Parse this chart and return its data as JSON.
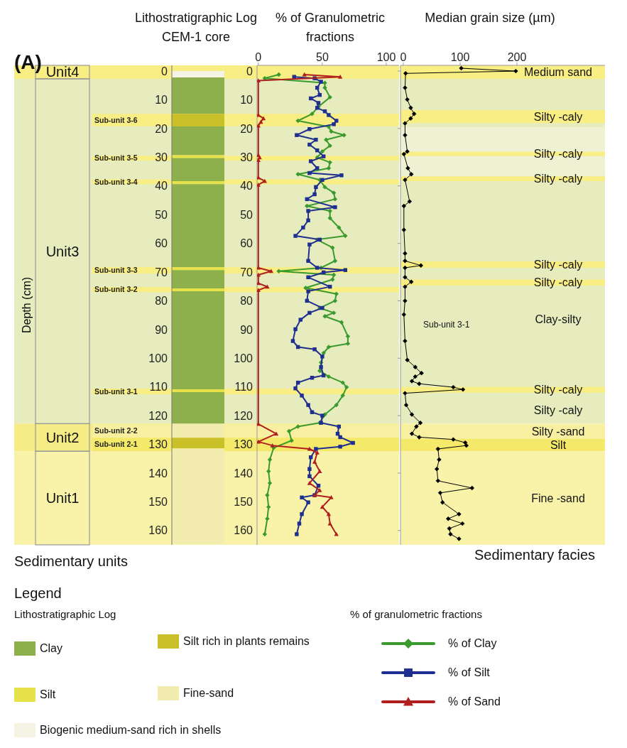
{
  "chart_data": [
    {
      "type": "bar",
      "stacked": true,
      "title": "Lithostratigraphic Log CEM-1 core",
      "ylabel": "Depth (cm)",
      "categories": [
        null
      ],
      "ylim": [
        165,
        -2
      ],
      "yticks": [
        0,
        10,
        20,
        30,
        40,
        50,
        60,
        70,
        80,
        90,
        100,
        110,
        120,
        130,
        140,
        150,
        160
      ],
      "legend": "bottom",
      "legend_title": "Lithostratigraphic Log",
      "annotations": [
        "(A)",
        "Sedimentary units",
        "Legend"
      ],
      "series": [
        {
          "name": "Biogenic medium-sand rich in shells",
          "color": "#f4f3e4",
          "values": [
            2.2
          ]
        },
        {
          "name": "Clay",
          "color": "#8db04c",
          "values": [
            12.7
          ]
        },
        {
          "name": "Silt rich in plants remains",
          "color": "#c9c02a",
          "values": [
            4.4
          ]
        },
        {
          "color": "#8db04c",
          "values": [
            10
          ]
        },
        {
          "name": "Silt",
          "color": "#e8e24a",
          "values": [
            1
          ]
        },
        {
          "color": "#8db04c",
          "values": [
            8.1
          ]
        },
        {
          "color": "#e8e24a",
          "values": [
            1
          ]
        },
        {
          "color": "#8db04c",
          "values": [
            28.9
          ]
        },
        {
          "color": "#e8e24a",
          "values": [
            1
          ]
        },
        {
          "color": "#8db04c",
          "values": [
            6.4
          ]
        },
        {
          "color": "#e8e24a",
          "values": [
            1
          ]
        },
        {
          "color": "#8db04c",
          "values": [
            34.1
          ]
        },
        {
          "color": "#e8e24a",
          "values": [
            1
          ]
        },
        {
          "color": "#8db04c",
          "values": [
            11
          ]
        },
        {
          "name": "Fine-sand",
          "color": "#f2edae",
          "values": [
            4.9
          ]
        },
        {
          "color": "#c9c02a",
          "values": [
            3.7
          ]
        },
        {
          "color": "#f2edae",
          "values": [
            33.2
          ]
        }
      ]
    },
    {
      "type": "line",
      "title": "% of Granulometric fractions",
      "orientation": "horizontal",
      "xlim": [
        -1,
        110
      ],
      "xticks": [
        0,
        50,
        100
      ],
      "ylim": [
        165,
        -2
      ],
      "yticks": [
        0,
        10,
        20,
        30,
        40,
        50,
        60,
        70,
        80,
        90,
        100,
        110,
        120,
        130,
        140,
        150,
        160
      ],
      "legend": "bottom",
      "legend_title": "% of granulometric fractions",
      "bands": [
        {
          "axis": "y",
          "from": -2,
          "to": 2.7,
          "label": "Unit4",
          "color": "#f8ee84"
        },
        {
          "axis": "y",
          "from": 2.7,
          "to": 122.8,
          "label": "Unit3",
          "color": "#e6ecbd"
        },
        {
          "axis": "y",
          "from": 122.8,
          "to": 132.4,
          "label": "Unit2",
          "color": "#f6ec86"
        },
        {
          "axis": "y",
          "from": 132.4,
          "to": 165,
          "label": "Unit1",
          "color": "#f8f3a8"
        },
        {
          "axis": "y",
          "from": 14.9,
          "to": 19.2,
          "label": "Sub-unit 3-6",
          "color": "#f8ee84"
        },
        {
          "axis": "y",
          "from": 29.5,
          "to": 31.2,
          "label": "Sub-unit 3-5",
          "color": "#f8ee84"
        },
        {
          "axis": "y",
          "from": 37.7,
          "to": 39.4,
          "label": "Sub-unit 3-4",
          "color": "#f8ee84"
        },
        {
          "axis": "y",
          "from": 68.3,
          "to": 70.5,
          "label": "Sub-unit 3-3",
          "color": "#f8ee84"
        },
        {
          "axis": "y",
          "from": 75.2,
          "to": 77,
          "label": "Sub-unit 3-2",
          "color": "#f8ee84"
        },
        {
          "axis": "y",
          "from": 110.6,
          "to": 112.6,
          "label": "Sub-unit 3-1",
          "color": "#f8ee84"
        },
        {
          "axis": "y",
          "from": 122.8,
          "to": 127.7,
          "label": "Sub-unit 2-2",
          "color": "#f8f0a0"
        },
        {
          "axis": "y",
          "from": 127.7,
          "to": 132.4,
          "label": "Sub-unit 2-1",
          "color": "#f5e96a"
        }
      ],
      "series": [
        {
          "name": "% of Clay",
          "color": "#3a9a2e",
          "marker": "diamond",
          "x": [
            1.2,
            2.5,
            4.1,
            5.8,
            9.1,
            12.4,
            14.9,
            17.3,
            19.4,
            21,
            22.3,
            23.9,
            26,
            28,
            30.1,
            31.8,
            33.8,
            35.9,
            37.9,
            40.4,
            42.4,
            44.6,
            47,
            48.7,
            51.2,
            54.5,
            57.4,
            58.7,
            61.5,
            66.1,
            68.5,
            69.7,
            71,
            72.6,
            75.5,
            77.6,
            80,
            82.5,
            84.2,
            85.4,
            87.5,
            92.4,
            94.9,
            96.1,
            98.2,
            101.5,
            104.4,
            106.4,
            108.5,
            110.1,
            113,
            116.3,
            119.6,
            122.5,
            123.8,
            125.4,
            128.7,
            131.2,
            135.3,
            139.4,
            143.5,
            147.7,
            151.8,
            155.9,
            161.3
          ],
          "values": [
            16,
            5,
            52,
            52,
            56,
            47,
            42,
            31,
            55,
            57,
            67,
            53,
            56,
            50,
            46,
            56,
            55,
            31,
            48,
            52,
            59,
            60,
            38,
            56,
            56,
            63,
            68,
            46,
            58,
            60,
            49,
            16,
            59,
            58,
            37,
            61,
            60,
            48,
            59,
            52,
            65,
            70,
            70,
            55,
            51,
            49,
            48,
            55,
            66,
            69,
            66,
            61,
            52,
            48,
            31,
            24,
            26,
            12,
            9,
            8,
            9,
            7,
            8,
            7,
            5
          ]
        },
        {
          "name": "% of Silt",
          "color": "#1f2f8f",
          "marker": "square",
          "x": [
            2.0,
            2.5,
            3.7,
            5.8,
            8.3,
            9.5,
            11.1,
            12.8,
            14.0,
            15.3,
            17.3,
            18.5,
            20.2,
            22.3,
            23.9,
            25.6,
            27.6,
            29.7,
            31.4,
            33.8,
            35.5,
            36.3,
            37.9,
            40.4,
            42.9,
            44.6,
            47.4,
            48.7,
            52,
            54.5,
            57.4,
            58.7,
            60.4,
            66.1,
            68.5,
            69.3,
            70.1,
            71.8,
            75.1,
            76.7,
            80,
            82.5,
            84.2,
            86.6,
            89.9,
            94,
            96.1,
            96.9,
            99.4,
            103.1,
            106,
            106.8,
            108.5,
            110.5,
            113,
            116.3,
            118.8,
            120,
            122.5,
            123.8,
            126.3,
            127.5,
            129.5,
            130.8,
            131.6,
            134.5,
            138.6,
            141.1,
            144.4,
            147.7,
            148.5,
            150.2,
            154.3,
            157.6,
            161.3
          ],
          "values": [
            28,
            44,
            49,
            46,
            48,
            41,
            47,
            46,
            52,
            55,
            61,
            59,
            40,
            30,
            45,
            40,
            46,
            51,
            41,
            46,
            40,
            65,
            50,
            45,
            44,
            38,
            60,
            39,
            39,
            35,
            29,
            48,
            40,
            39,
            46,
            68,
            51,
            39,
            56,
            39,
            38,
            50,
            40,
            33,
            29,
            27,
            31,
            44,
            50,
            49,
            51,
            42,
            31,
            29,
            34,
            39,
            42,
            50,
            49,
            63,
            62,
            64,
            74,
            64,
            45,
            41,
            40,
            40,
            47,
            44,
            34,
            39,
            34,
            32,
            30
          ]
        },
        {
          "name": "% of Sand",
          "color": "#b01e1e",
          "marker": "triangle",
          "x": [
            1.2,
            2.0,
            3.3,
            15.3,
            16.5,
            17.7,
            19,
            29.3,
            30.1,
            31,
            37.1,
            38.3,
            39.6,
            68.5,
            69.7,
            71,
            73.9,
            75.1,
            76.3,
            122.9,
            126.3,
            129.1,
            130.4,
            131.6,
            132.9,
            136.1,
            139.4,
            143.5,
            146,
            147.7,
            148.5,
            151.8,
            154.3,
            157.6,
            161.3
          ],
          "values": [
            36,
            64,
            0,
            0,
            4,
            2,
            0,
            0,
            1,
            0,
            0,
            5,
            0,
            0,
            10,
            0,
            0,
            7,
            0,
            0,
            14,
            0,
            11,
            40,
            46,
            44,
            48,
            40,
            48,
            44,
            57,
            50,
            55,
            56,
            61
          ]
        }
      ]
    },
    {
      "type": "line",
      "title": "Median grain size (µm)",
      "xlabel": "Sedimentary facies",
      "orientation": "horizontal",
      "xlim": [
        -5,
        355
      ],
      "xticks": [
        0,
        100,
        200
      ],
      "ylim": [
        165,
        -2
      ],
      "yticks": [
        0,
        20,
        40,
        60,
        80,
        100,
        120,
        140,
        160
      ],
      "tick_labels": "x",
      "annotations": [
        "Sub-unit 3-1",
        "Clay-silty",
        "Silty -caly"
      ],
      "bands": [
        {
          "axis": "y",
          "from": -2,
          "to": 2.7,
          "label": "Medium sand",
          "color": "#f8ee84"
        },
        {
          "axis": "y",
          "from": 2.7,
          "to": 122.8,
          "color": "#e6ecbd"
        },
        {
          "axis": "y",
          "from": 19.5,
          "to": 36.5,
          "color": "#eef2d2"
        },
        {
          "axis": "y",
          "from": 13.6,
          "to": 18.1,
          "label": "Silty -caly",
          "color": "#f8ee84"
        },
        {
          "axis": "y",
          "from": 28.1,
          "to": 29.6,
          "label": "Silty -caly",
          "color": "#f8ee84"
        },
        {
          "axis": "y",
          "from": 36.7,
          "to": 38.3,
          "label": "Silty -caly",
          "color": "#f8ee84"
        },
        {
          "axis": "y",
          "from": 66.3,
          "to": 68.5,
          "label": "Silty -caly",
          "color": "#f8ee84"
        },
        {
          "axis": "y",
          "from": 72.6,
          "to": 74.7,
          "label": "Silty -caly",
          "color": "#f8ee84"
        },
        {
          "axis": "y",
          "from": 110,
          "to": 112,
          "label": "Silty -caly",
          "color": "#f8ee84"
        },
        {
          "axis": "y",
          "from": 122.8,
          "to": 128,
          "label": "Silty -sand",
          "color": "#f8f0a0"
        },
        {
          "axis": "y",
          "from": 128,
          "to": 132.4,
          "label": "Silt",
          "color": "#f5e96a"
        },
        {
          "axis": "y",
          "from": 132.4,
          "to": 165,
          "label": "Fine -sand",
          "color": "#f8f3a8"
        }
      ],
      "series": [
        {
          "color": "#000000",
          "marker": "diamond",
          "x": [
            -1,
            0,
            0.8,
            5.8,
            9.9,
            12.8,
            14.9,
            16.5,
            18.2,
            22.3,
            28,
            28.9,
            33.8,
            35.9,
            37.9,
            45.4,
            47,
            55.3,
            63.5,
            66.1,
            67.7,
            68.5,
            71.8,
            73.4,
            75.1,
            80,
            84.8,
            94,
            100.6,
            103.1,
            105.2,
            106.4,
            108,
            108.9,
            110.1,
            110.9,
            112.2,
            116.3,
            119.6,
            122.5,
            123.8,
            126.3,
            127.5,
            128.3,
            129.4,
            130.4,
            131.6,
            135.3,
            138.6,
            142.7,
            145.2,
            146.9,
            150.2,
            154.3,
            155.9,
            157.6,
            159.3,
            161.3,
            162.9
          ],
          "values": [
            102,
            198,
            4,
            3,
            7,
            13,
            19,
            13,
            3,
            3,
            7,
            1,
            8,
            14,
            3,
            11,
            1,
            1,
            3,
            3,
            31,
            3,
            3,
            14,
            3,
            3,
            1,
            3,
            7,
            21,
            32,
            21,
            15,
            28,
            88,
            105,
            3,
            5,
            15,
            30,
            23,
            15,
            28,
            88,
            109,
            111,
            61,
            63,
            59,
            61,
            121,
            65,
            69,
            98,
            79,
            104,
            81,
            83,
            98
          ]
        }
      ]
    }
  ]
}
